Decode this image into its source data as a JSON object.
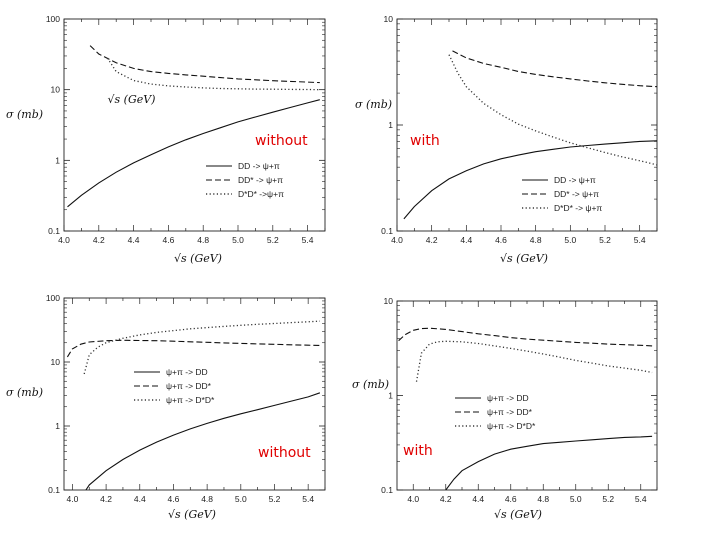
{
  "notes": {
    "top_left": "without",
    "top_right": "with",
    "bottom_left": "without",
    "bottom_right": "with"
  },
  "chart_data": [
    {
      "type": "line",
      "title": "",
      "xlabel": "√s (GeV)",
      "ylabel": "σ (mb)",
      "yscale": "log",
      "xlim": [
        4.0,
        5.5
      ],
      "ylim": [
        0.1,
        100
      ],
      "xticks": [
        "4.0",
        "4.2",
        "4.4",
        "4.6",
        "4.8",
        "5.0",
        "5.2",
        "5.4"
      ],
      "yticks": [
        "0.1",
        "1",
        "10",
        "100"
      ],
      "grid": false,
      "legend": "bottom-right",
      "annotations": [
        "√s (GeV)"
      ],
      "series": [
        {
          "name": "DD -> ψ+π",
          "style": "solid",
          "x": [
            4.02,
            4.1,
            4.2,
            4.3,
            4.4,
            4.5,
            4.6,
            4.7,
            4.8,
            4.9,
            5.0,
            5.1,
            5.2,
            5.3,
            5.4,
            5.47
          ],
          "y": [
            0.22,
            0.32,
            0.48,
            0.68,
            0.92,
            1.2,
            1.55,
            1.95,
            2.4,
            2.9,
            3.5,
            4.1,
            4.8,
            5.6,
            6.5,
            7.2
          ]
        },
        {
          "name": "DD* -> ψ+π",
          "style": "dashed",
          "x": [
            4.15,
            4.2,
            4.3,
            4.4,
            4.5,
            4.6,
            4.7,
            4.8,
            4.9,
            5.0,
            5.1,
            5.2,
            5.3,
            5.4,
            5.47
          ],
          "y": [
            42,
            32,
            24,
            20,
            18,
            17,
            16.2,
            15.5,
            14.8,
            14.2,
            13.8,
            13.4,
            13.1,
            12.8,
            12.6
          ]
        },
        {
          "name": "D*D* ->ψ+π",
          "style": "dotted",
          "x": [
            4.25,
            4.3,
            4.4,
            4.5,
            4.6,
            4.7,
            4.8,
            4.9,
            5.0,
            5.1,
            5.2,
            5.3,
            5.4,
            5.47
          ],
          "y": [
            28,
            18,
            13.5,
            12,
            11.3,
            10.9,
            10.6,
            10.4,
            10.3,
            10.2,
            10.15,
            10.1,
            10.05,
            10.0
          ]
        }
      ]
    },
    {
      "type": "line",
      "title": "",
      "xlabel": "√s (GeV)",
      "ylabel": "σ (mb)",
      "yscale": "log",
      "xlim": [
        4.0,
        5.5
      ],
      "ylim": [
        0.1,
        10
      ],
      "xticks": [
        "4.0",
        "4.2",
        "4.4",
        "4.6",
        "4.8",
        "5.0",
        "5.2",
        "5.4"
      ],
      "yticks": [
        "0.1",
        "1",
        "10"
      ],
      "grid": false,
      "legend": "bottom-right",
      "series": [
        {
          "name": "DD -> ψ+π",
          "style": "solid",
          "x": [
            4.04,
            4.1,
            4.2,
            4.3,
            4.4,
            4.5,
            4.6,
            4.7,
            4.8,
            4.9,
            5.0,
            5.1,
            5.2,
            5.3,
            5.4,
            5.5
          ],
          "y": [
            0.13,
            0.17,
            0.24,
            0.31,
            0.37,
            0.43,
            0.48,
            0.52,
            0.56,
            0.59,
            0.62,
            0.64,
            0.66,
            0.68,
            0.7,
            0.71
          ]
        },
        {
          "name": "DD* -> ψ+π",
          "style": "dashed",
          "x": [
            4.32,
            4.4,
            4.5,
            4.6,
            4.7,
            4.8,
            4.9,
            5.0,
            5.1,
            5.2,
            5.3,
            5.4,
            5.5
          ],
          "y": [
            5.0,
            4.3,
            3.8,
            3.5,
            3.2,
            3.0,
            2.85,
            2.72,
            2.6,
            2.5,
            2.42,
            2.35,
            2.3
          ]
        },
        {
          "name": "D*D* -> ψ+π",
          "style": "dotted",
          "x": [
            4.3,
            4.35,
            4.4,
            4.5,
            4.6,
            4.7,
            4.8,
            4.9,
            5.0,
            5.1,
            5.2,
            5.3,
            5.4,
            5.5
          ],
          "y": [
            4.6,
            3.1,
            2.3,
            1.6,
            1.25,
            1.02,
            0.88,
            0.77,
            0.68,
            0.61,
            0.55,
            0.5,
            0.46,
            0.42
          ]
        }
      ]
    },
    {
      "type": "line",
      "title": "",
      "xlabel": "√s (GeV)",
      "ylabel": "σ (mb)",
      "yscale": "log",
      "xlim": [
        3.95,
        5.5
      ],
      "ylim": [
        0.1,
        100
      ],
      "xticks": [
        "4.0",
        "4.2",
        "4.4",
        "4.6",
        "4.8",
        "5.0",
        "5.2",
        "5.4"
      ],
      "yticks": [
        "0.1",
        "1",
        "10",
        "100"
      ],
      "grid": false,
      "legend": "center-right",
      "series": [
        {
          "name": "ψ+π -> DD",
          "style": "solid",
          "x": [
            4.08,
            4.1,
            4.2,
            4.3,
            4.4,
            4.5,
            4.6,
            4.7,
            4.8,
            4.9,
            5.0,
            5.1,
            5.2,
            5.3,
            5.4,
            5.47
          ],
          "y": [
            0.1,
            0.12,
            0.2,
            0.3,
            0.42,
            0.56,
            0.72,
            0.9,
            1.1,
            1.32,
            1.55,
            1.8,
            2.1,
            2.45,
            2.85,
            3.3
          ]
        },
        {
          "name": "ψ+π -> DD*",
          "style": "dashed",
          "x": [
            3.97,
            4.0,
            4.05,
            4.1,
            4.2,
            4.3,
            4.4,
            4.5,
            4.6,
            4.7,
            4.8,
            4.9,
            5.0,
            5.1,
            5.2,
            5.3,
            5.4,
            5.47
          ],
          "y": [
            12,
            16,
            19,
            20.5,
            21.5,
            21.8,
            21.7,
            21.5,
            21.1,
            20.7,
            20.3,
            19.9,
            19.5,
            19.2,
            18.9,
            18.6,
            18.3,
            18.1
          ]
        },
        {
          "name": "ψ+π -> D*D*",
          "style": "dotted",
          "x": [
            4.07,
            4.1,
            4.15,
            4.2,
            4.3,
            4.4,
            4.5,
            4.6,
            4.7,
            4.8,
            4.9,
            5.0,
            5.1,
            5.2,
            5.3,
            5.4,
            5.47
          ],
          "y": [
            6.5,
            13,
            17,
            20,
            23.5,
            26.5,
            29,
            31,
            33,
            34.5,
            36,
            37.5,
            38.8,
            40,
            41.2,
            42.5,
            43.5
          ]
        }
      ]
    },
    {
      "type": "line",
      "title": "",
      "xlabel": "√s (GeV)",
      "ylabel": "σ (mb)",
      "yscale": "log",
      "xlim": [
        3.9,
        5.5
      ],
      "ylim": [
        0.1,
        10
      ],
      "xticks": [
        "4.0",
        "4.2",
        "4.4",
        "4.6",
        "4.8",
        "5.0",
        "5.2",
        "5.4"
      ],
      "yticks": [
        "0.1",
        "1",
        "10"
      ],
      "grid": false,
      "legend": "center-right",
      "series": [
        {
          "name": "ψ+π -> DD",
          "style": "solid",
          "x": [
            4.2,
            4.25,
            4.3,
            4.4,
            4.5,
            4.6,
            4.7,
            4.8,
            4.9,
            5.0,
            5.1,
            5.2,
            5.3,
            5.4,
            5.47
          ],
          "y": [
            0.1,
            0.13,
            0.16,
            0.2,
            0.24,
            0.27,
            0.29,
            0.31,
            0.32,
            0.33,
            0.34,
            0.35,
            0.36,
            0.365,
            0.37
          ]
        },
        {
          "name": "ψ+π -> DD*",
          "style": "dashed",
          "x": [
            3.91,
            3.95,
            4.0,
            4.05,
            4.1,
            4.2,
            4.3,
            4.4,
            4.5,
            4.6,
            4.7,
            4.8,
            4.9,
            5.0,
            5.1,
            5.2,
            5.3,
            5.4,
            5.47
          ],
          "y": [
            3.8,
            4.4,
            4.9,
            5.1,
            5.15,
            5.0,
            4.75,
            4.5,
            4.3,
            4.1,
            3.95,
            3.85,
            3.75,
            3.65,
            3.58,
            3.5,
            3.45,
            3.4,
            3.35
          ]
        },
        {
          "name": "ψ+π -> D*D*",
          "style": "dotted",
          "x": [
            4.02,
            4.05,
            4.1,
            4.15,
            4.2,
            4.3,
            4.4,
            4.5,
            4.6,
            4.7,
            4.8,
            4.9,
            5.0,
            5.1,
            5.2,
            5.3,
            5.4,
            5.47
          ],
          "y": [
            1.4,
            2.8,
            3.5,
            3.7,
            3.75,
            3.7,
            3.55,
            3.35,
            3.15,
            2.95,
            2.75,
            2.55,
            2.35,
            2.2,
            2.05,
            1.95,
            1.85,
            1.75
          ]
        }
      ]
    }
  ]
}
